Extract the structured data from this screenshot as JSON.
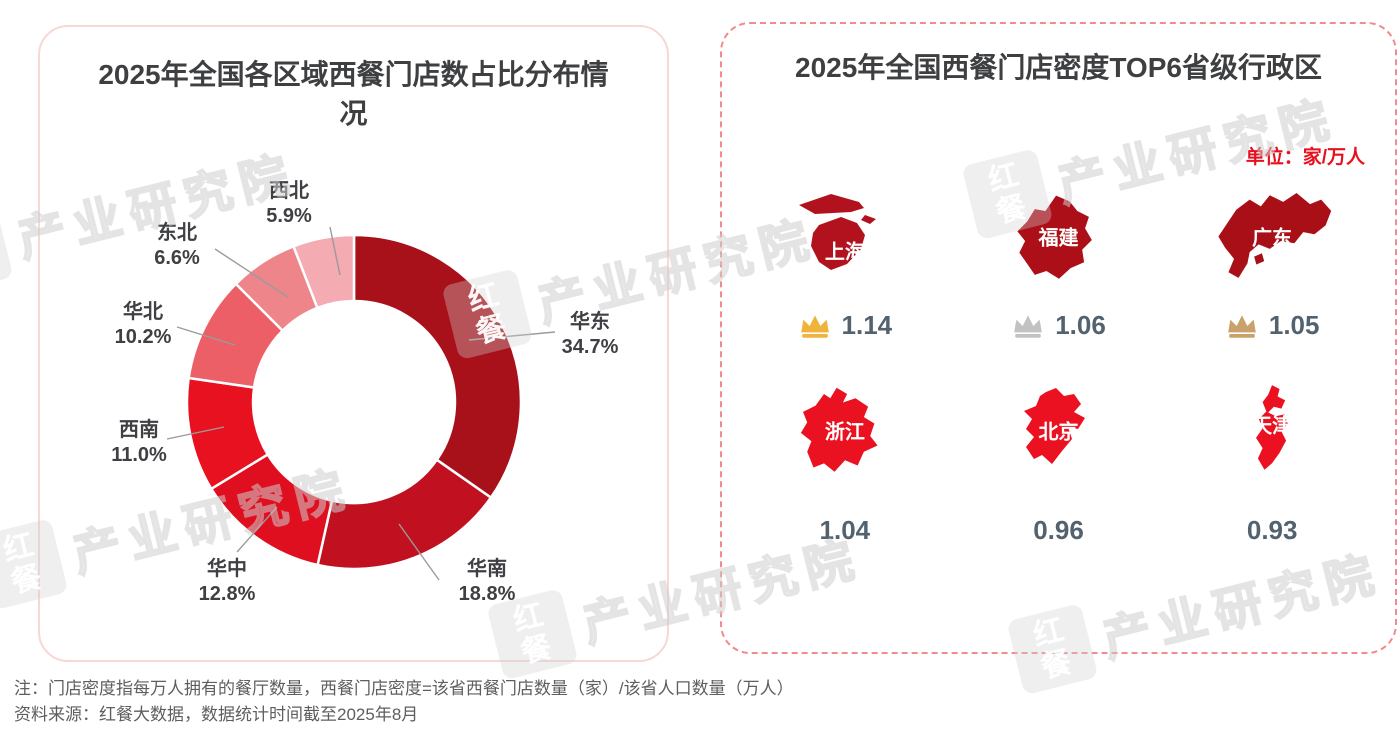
{
  "watermark": {
    "brand": "红餐",
    "name": "产业研究院"
  },
  "chart_data": [
    {
      "type": "pie",
      "donut": true,
      "title": "2025年全国各区域西餐门店数占比分布情况",
      "categories": [
        "华东",
        "华南",
        "华中",
        "西南",
        "华北",
        "东北",
        "西北"
      ],
      "values": [
        34.7,
        18.8,
        12.8,
        11.0,
        10.2,
        6.6,
        5.9
      ],
      "value_labels": [
        "34.7%",
        "18.8%",
        "12.8%",
        "11.0%",
        "10.2%",
        "6.6%",
        "5.9%"
      ],
      "colors": [
        "#a8101a",
        "#c11020",
        "#e00f1f",
        "#e71120",
        "#ec5f66",
        "#ed858a",
        "#f4abb1"
      ],
      "start_angle": "top",
      "direction": "clockwise",
      "unit": "%"
    },
    {
      "type": "table",
      "title": "2025年全国西餐门店密度TOP6省级行政区",
      "unit_label": "单位：家/万人",
      "crown_colors": {
        "gold": "#f0b43c",
        "silver": "#c2c2c2",
        "bronze": "#c9a26b"
      },
      "items": [
        {
          "rank": 1,
          "province": "上海",
          "value": "1.14",
          "crown": "gold",
          "map_color": "#b2121d"
        },
        {
          "rank": 2,
          "province": "福建",
          "value": "1.06",
          "crown": "silver",
          "map_color": "#ac0f17"
        },
        {
          "rank": 3,
          "province": "广东",
          "value": "1.05",
          "crown": "bronze",
          "map_color": "#a90f16"
        },
        {
          "rank": 4,
          "province": "浙江",
          "value": "1.04",
          "crown": null,
          "map_color": "#ea1220"
        },
        {
          "rank": 5,
          "province": "北京",
          "value": "0.96",
          "crown": null,
          "map_color": "#ec1120"
        },
        {
          "rank": 6,
          "province": "天津",
          "value": "0.93",
          "crown": null,
          "map_color": "#ec1120"
        }
      ]
    }
  ],
  "notes": {
    "line1": "注：门店密度指每万人拥有的餐厅数量，西餐门店密度=该省西餐门店数量（家）/该省人口数量（万人）",
    "line2": "资料来源：红餐大数据，数据统计时间截至2025年8月"
  }
}
